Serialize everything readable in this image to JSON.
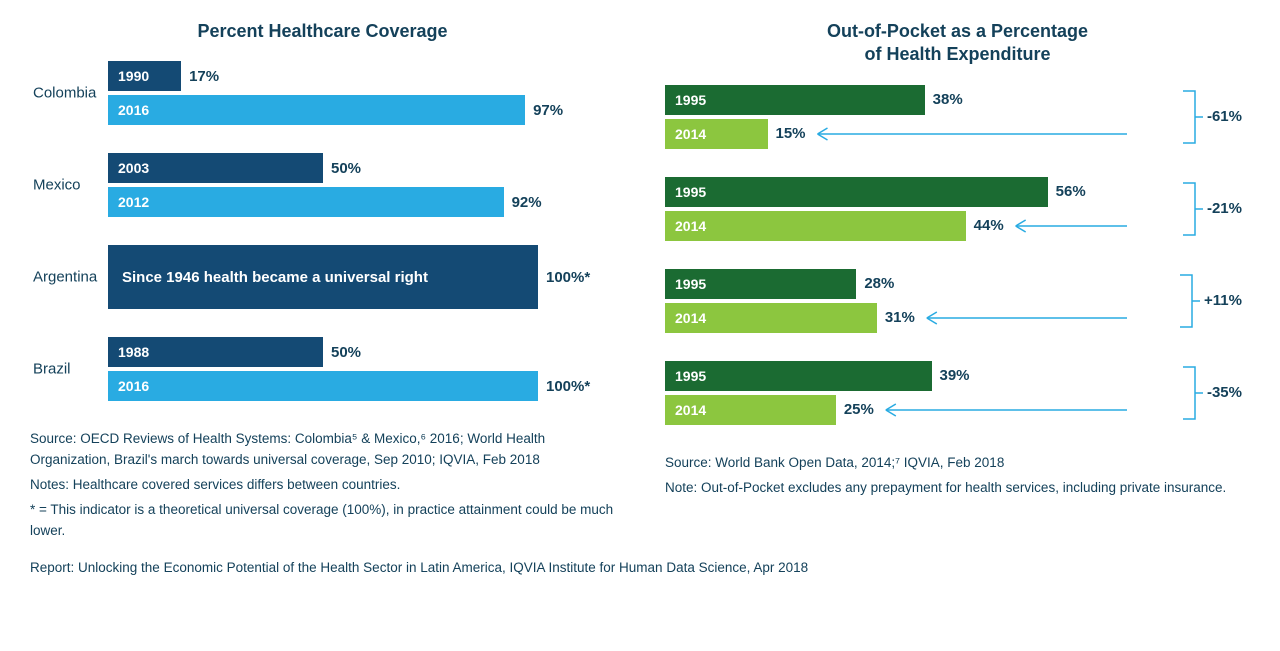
{
  "left": {
    "title": "Percent Healthcare Coverage",
    "max": 100,
    "barColors": {
      "dark": "#144a74",
      "light": "#29abe2"
    },
    "countries": [
      {
        "name": "Colombia",
        "bars": [
          {
            "year": "1990",
            "value": 17,
            "label": "17%",
            "color": "dark"
          },
          {
            "year": "2016",
            "value": 97,
            "label": "97%",
            "color": "light"
          }
        ]
      },
      {
        "name": "Mexico",
        "bars": [
          {
            "year": "2003",
            "value": 50,
            "label": "50%",
            "color": "dark"
          },
          {
            "year": "2012",
            "value": 92,
            "label": "92%",
            "color": "light"
          }
        ]
      },
      {
        "name": "Argentina",
        "special": true,
        "text": "Since 1946 health became a universal right",
        "value": 100,
        "label": "100%*",
        "color": "dark"
      },
      {
        "name": "Brazil",
        "bars": [
          {
            "year": "1988",
            "value": 50,
            "label": "50%",
            "color": "dark"
          },
          {
            "year": "2016",
            "value": 100,
            "label": "100%*",
            "color": "light"
          }
        ]
      }
    ],
    "footnotes": [
      "Source: OECD Reviews of Health Systems: Colombia⁵ & Mexico,⁶ 2016; World Health Organization, Brazil's march towards universal coverage, Sep 2010; IQVIA, Feb 2018",
      "Notes: Healthcare covered services differs between countries.",
      "* = This indicator is a theoretical universal coverage (100%), in practice attainment could be much lower."
    ]
  },
  "right": {
    "title": "Out-of-Pocket as a Percentage\nof Health Expenditure",
    "max": 60,
    "barColors": {
      "dark": "#1b6b32",
      "light": "#8cc63f"
    },
    "arrowColor": "#29abe2",
    "countries": [
      {
        "bars": [
          {
            "year": "1995",
            "value": 38,
            "label": "38%",
            "color": "dark"
          },
          {
            "year": "2014",
            "value": 15,
            "label": "15%",
            "color": "light"
          }
        ],
        "change": "-61%"
      },
      {
        "bars": [
          {
            "year": "1995",
            "value": 56,
            "label": "56%",
            "color": "dark"
          },
          {
            "year": "2014",
            "value": 44,
            "label": "44%",
            "color": "light"
          }
        ],
        "change": "-21%"
      },
      {
        "bars": [
          {
            "year": "1995",
            "value": 28,
            "label": "28%",
            "color": "dark"
          },
          {
            "year": "2014",
            "value": 31,
            "label": "31%",
            "color": "light"
          }
        ],
        "change": "+11%"
      },
      {
        "bars": [
          {
            "year": "1995",
            "value": 39,
            "label": "39%",
            "color": "dark"
          },
          {
            "year": "2014",
            "value": 25,
            "label": "25%",
            "color": "light"
          }
        ],
        "change": "-35%"
      }
    ],
    "footnotes": [
      "Source: World Bank Open Data, 2014;⁷ IQVIA, Feb 2018",
      "Note: Out-of-Pocket excludes any prepayment for health services, including private insurance."
    ]
  },
  "report": "Report: Unlocking the Economic Potential of the Health Sector in Latin America, IQVIA Institute for Human Data Science, Apr 2018",
  "leftBarMaxPx": 430,
  "rightBarMaxPx": 410
}
